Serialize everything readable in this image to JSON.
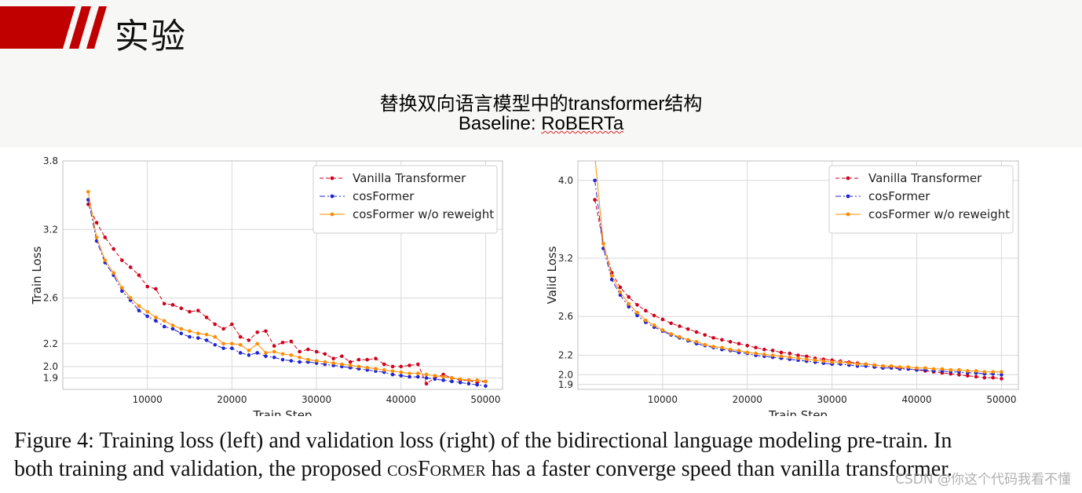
{
  "slide": {
    "title": "实验",
    "subtitle_line1": "替换双向语言模型中的transformer结构",
    "subtitle_prefix": "Baseline: ",
    "subtitle_model": "RoBERTa",
    "accent_color": "#c00000"
  },
  "caption": {
    "line1": "Figure 4:  Training loss (left) and validation loss (right) of the bidirectional language modeling pre-train.  In",
    "line2_pre": "both training and validation, the proposed ",
    "line2_model": "cosFormer",
    "line2_post": " has a faster converge speed than vanilla transformer."
  },
  "watermark": "CSDN @你这个代码我看不懂",
  "chart_data": [
    {
      "type": "line",
      "xlabel": "Train Step",
      "ylabel": "Train Loss",
      "xlim": [
        0,
        52000
      ],
      "ylim": [
        1.8,
        3.8
      ],
      "xticks": [
        10000,
        20000,
        30000,
        40000,
        50000
      ],
      "yticks": [
        1.9,
        2.0,
        2.2,
        2.6,
        3.2,
        3.8
      ],
      "grid": true,
      "legend_position": "top-right",
      "series": [
        {
          "name": "Vanilla Transformer",
          "color": "#d0021b",
          "style": "dashed",
          "x": [
            3000,
            4000,
            5000,
            6000,
            7000,
            8000,
            9000,
            10000,
            11000,
            12000,
            13000,
            14000,
            15000,
            16000,
            17000,
            18000,
            19000,
            20000,
            21000,
            22000,
            23000,
            24000,
            25000,
            26000,
            27000,
            28000,
            29000,
            30000,
            31000,
            32000,
            33000,
            34000,
            35000,
            36000,
            37000,
            38000,
            39000,
            40000,
            41000,
            42000,
            43000,
            44000,
            45000,
            46000,
            47000,
            48000,
            49000,
            50000
          ],
          "values": [
            3.42,
            3.26,
            3.13,
            3.03,
            2.93,
            2.87,
            2.8,
            2.7,
            2.68,
            2.55,
            2.54,
            2.51,
            2.48,
            2.49,
            2.43,
            2.37,
            2.33,
            2.37,
            2.26,
            2.23,
            2.3,
            2.31,
            2.18,
            2.21,
            2.22,
            2.13,
            2.15,
            2.13,
            2.11,
            2.07,
            2.09,
            2.04,
            2.06,
            2.06,
            2.07,
            2.02,
            2.0,
            2.0,
            2.01,
            2.02,
            1.85,
            1.9,
            1.93,
            1.9,
            1.88,
            1.88,
            1.86,
            1.87
          ]
        },
        {
          "name": "cosFormer",
          "color": "#1f24d1",
          "style": "dashdot",
          "x": [
            3000,
            4000,
            5000,
            6000,
            7000,
            8000,
            9000,
            10000,
            11000,
            12000,
            13000,
            14000,
            15000,
            16000,
            17000,
            18000,
            19000,
            20000,
            21000,
            22000,
            23000,
            24000,
            25000,
            26000,
            27000,
            28000,
            29000,
            30000,
            31000,
            32000,
            33000,
            34000,
            35000,
            36000,
            37000,
            38000,
            39000,
            40000,
            41000,
            42000,
            43000,
            44000,
            45000,
            46000,
            47000,
            48000,
            49000,
            50000
          ],
          "values": [
            3.46,
            3.1,
            2.91,
            2.8,
            2.66,
            2.58,
            2.49,
            2.44,
            2.4,
            2.35,
            2.33,
            2.29,
            2.26,
            2.25,
            2.23,
            2.19,
            2.16,
            2.16,
            2.12,
            2.1,
            2.12,
            2.09,
            2.08,
            2.06,
            2.05,
            2.04,
            2.04,
            2.03,
            2.02,
            2.01,
            2.0,
            1.99,
            1.98,
            1.97,
            1.96,
            1.95,
            1.93,
            1.92,
            1.91,
            1.91,
            1.9,
            1.89,
            1.88,
            1.87,
            1.86,
            1.85,
            1.84,
            1.83
          ]
        },
        {
          "name": "cosFormer w/o reweight",
          "color": "#ff8c00",
          "style": "solid",
          "x": [
            3000,
            4000,
            5000,
            6000,
            7000,
            8000,
            9000,
            10000,
            11000,
            12000,
            13000,
            14000,
            15000,
            16000,
            17000,
            18000,
            19000,
            20000,
            21000,
            22000,
            23000,
            24000,
            25000,
            26000,
            27000,
            28000,
            29000,
            30000,
            31000,
            32000,
            33000,
            34000,
            35000,
            36000,
            37000,
            38000,
            39000,
            40000,
            41000,
            42000,
            43000,
            44000,
            45000,
            46000,
            47000,
            48000,
            49000,
            50000
          ],
          "values": [
            3.53,
            3.13,
            2.93,
            2.82,
            2.69,
            2.6,
            2.53,
            2.48,
            2.43,
            2.4,
            2.36,
            2.33,
            2.31,
            2.29,
            2.28,
            2.26,
            2.2,
            2.2,
            2.19,
            2.14,
            2.2,
            2.12,
            2.13,
            2.11,
            2.1,
            2.08,
            2.06,
            2.05,
            2.04,
            2.03,
            2.02,
            2.01,
            2.0,
            1.99,
            1.98,
            1.97,
            1.96,
            1.95,
            1.94,
            1.94,
            1.93,
            1.92,
            1.91,
            1.9,
            1.89,
            1.88,
            1.88,
            1.87
          ]
        }
      ]
    },
    {
      "type": "line",
      "xlabel": "Train Step",
      "ylabel": "Valid Loss",
      "xlim": [
        0,
        52000
      ],
      "ylim": [
        1.85,
        4.2
      ],
      "xticks": [
        10000,
        20000,
        30000,
        40000,
        50000
      ],
      "yticks": [
        1.9,
        2.0,
        2.2,
        2.6,
        3.2,
        4.0
      ],
      "grid": true,
      "legend_position": "top-right",
      "series": [
        {
          "name": "Vanilla Transformer",
          "color": "#d0021b",
          "style": "dashed",
          "x": [
            2000,
            3000,
            4000,
            5000,
            6000,
            7000,
            8000,
            9000,
            10000,
            11000,
            12000,
            13000,
            14000,
            15000,
            16000,
            17000,
            18000,
            19000,
            20000,
            21000,
            22000,
            23000,
            24000,
            25000,
            26000,
            27000,
            28000,
            29000,
            30000,
            31000,
            32000,
            33000,
            34000,
            35000,
            36000,
            37000,
            38000,
            39000,
            40000,
            41000,
            42000,
            43000,
            44000,
            45000,
            46000,
            47000,
            48000,
            49000,
            50000
          ],
          "values": [
            3.8,
            3.35,
            3.05,
            2.9,
            2.8,
            2.72,
            2.66,
            2.61,
            2.57,
            2.53,
            2.5,
            2.47,
            2.44,
            2.41,
            2.38,
            2.36,
            2.34,
            2.32,
            2.3,
            2.28,
            2.26,
            2.25,
            2.23,
            2.22,
            2.2,
            2.19,
            2.17,
            2.16,
            2.15,
            2.14,
            2.13,
            2.12,
            2.11,
            2.1,
            2.09,
            2.08,
            2.07,
            2.06,
            2.05,
            2.04,
            2.03,
            2.02,
            2.01,
            2.0,
            1.99,
            1.98,
            1.97,
            1.97,
            1.96
          ]
        },
        {
          "name": "cosFormer",
          "color": "#1f24d1",
          "style": "dashdot",
          "x": [
            2000,
            3000,
            4000,
            5000,
            6000,
            7000,
            8000,
            9000,
            10000,
            11000,
            12000,
            13000,
            14000,
            15000,
            16000,
            17000,
            18000,
            19000,
            20000,
            21000,
            22000,
            23000,
            24000,
            25000,
            26000,
            27000,
            28000,
            29000,
            30000,
            31000,
            32000,
            33000,
            34000,
            35000,
            36000,
            37000,
            38000,
            39000,
            40000,
            41000,
            42000,
            43000,
            44000,
            45000,
            46000,
            47000,
            48000,
            49000,
            50000
          ],
          "values": [
            4.0,
            3.3,
            2.98,
            2.82,
            2.7,
            2.61,
            2.54,
            2.49,
            2.45,
            2.41,
            2.38,
            2.35,
            2.32,
            2.3,
            2.28,
            2.26,
            2.25,
            2.23,
            2.22,
            2.2,
            2.19,
            2.18,
            2.17,
            2.16,
            2.15,
            2.14,
            2.13,
            2.12,
            2.11,
            2.11,
            2.1,
            2.09,
            2.09,
            2.08,
            2.07,
            2.07,
            2.06,
            2.06,
            2.05,
            2.05,
            2.04,
            2.04,
            2.03,
            2.03,
            2.02,
            2.02,
            2.01,
            2.01,
            2.0
          ]
        },
        {
          "name": "cosFormer w/o reweight",
          "color": "#ff8c00",
          "style": "solid",
          "x": [
            2000,
            3000,
            4000,
            5000,
            6000,
            7000,
            8000,
            9000,
            10000,
            11000,
            12000,
            13000,
            14000,
            15000,
            16000,
            17000,
            18000,
            19000,
            20000,
            21000,
            22000,
            23000,
            24000,
            25000,
            26000,
            27000,
            28000,
            29000,
            30000,
            31000,
            32000,
            33000,
            34000,
            35000,
            36000,
            37000,
            38000,
            39000,
            40000,
            41000,
            42000,
            43000,
            44000,
            45000,
            46000,
            47000,
            48000,
            49000,
            50000
          ],
          "values": [
            4.25,
            3.35,
            3.02,
            2.85,
            2.73,
            2.64,
            2.56,
            2.51,
            2.46,
            2.42,
            2.39,
            2.36,
            2.34,
            2.31,
            2.29,
            2.28,
            2.26,
            2.25,
            2.23,
            2.22,
            2.21,
            2.2,
            2.19,
            2.18,
            2.17,
            2.16,
            2.15,
            2.14,
            2.13,
            2.13,
            2.12,
            2.11,
            2.11,
            2.1,
            2.09,
            2.09,
            2.08,
            2.08,
            2.07,
            2.07,
            2.06,
            2.06,
            2.05,
            2.05,
            2.04,
            2.04,
            2.03,
            2.03,
            2.03
          ]
        }
      ]
    }
  ]
}
